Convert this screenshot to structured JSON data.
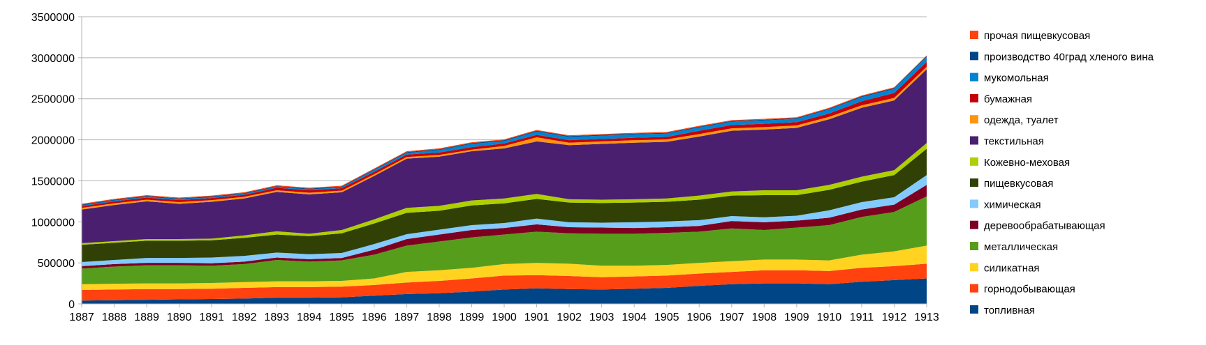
{
  "chart_data": {
    "type": "area",
    "stacked": true,
    "title": "",
    "xlabel": "",
    "ylabel": "",
    "ylim": [
      0,
      3500000
    ],
    "y_ticks": [
      0,
      500000,
      1000000,
      1500000,
      2000000,
      2500000,
      3000000,
      3500000
    ],
    "y_tick_labels": [
      "0",
      "500000",
      "1000000",
      "1500000",
      "2000000",
      "2500000",
      "3000000",
      "3500000"
    ],
    "grid": "horizontal",
    "legend_position": "right",
    "categories": [
      "1887",
      "1888",
      "1889",
      "1890",
      "1891",
      "1892",
      "1893",
      "1894",
      "1895",
      "1896",
      "1897",
      "1898",
      "1899",
      "1900",
      "1901",
      "1902",
      "1903",
      "1904",
      "1905",
      "1906",
      "1907",
      "1908",
      "1909",
      "1910",
      "1911",
      "1912",
      "1913"
    ],
    "series": [
      {
        "name": "топливная",
        "color": "#004586",
        "values": [
          40000,
          45000,
          50000,
          55000,
          60000,
          65000,
          75000,
          75000,
          80000,
          100000,
          120000,
          130000,
          150000,
          175000,
          190000,
          180000,
          175000,
          185000,
          195000,
          220000,
          240000,
          250000,
          250000,
          240000,
          270000,
          290000,
          310000
        ]
      },
      {
        "name": "горнодобывающая",
        "color": "#ff420e",
        "values": [
          130000,
          130000,
          130000,
          125000,
          125000,
          130000,
          130000,
          130000,
          130000,
          130000,
          140000,
          150000,
          160000,
          170000,
          160000,
          160000,
          150000,
          150000,
          150000,
          150000,
          150000,
          160000,
          160000,
          160000,
          170000,
          170000,
          180000
        ]
      },
      {
        "name": "силикатная",
        "color": "#ffd320",
        "values": [
          70000,
          70000,
          70000,
          70000,
          70000,
          70000,
          70000,
          70000,
          70000,
          80000,
          130000,
          130000,
          130000,
          140000,
          150000,
          150000,
          140000,
          130000,
          130000,
          130000,
          130000,
          130000,
          130000,
          130000,
          160000,
          180000,
          220000
        ]
      },
      {
        "name": "металлическая",
        "color": "#579d1c",
        "values": [
          190000,
          210000,
          220000,
          220000,
          210000,
          220000,
          260000,
          240000,
          250000,
          290000,
          320000,
          350000,
          370000,
          360000,
          380000,
          370000,
          390000,
          390000,
          390000,
          380000,
          400000,
          360000,
          390000,
          430000,
          460000,
          480000,
          600000
        ]
      },
      {
        "name": "деревообрабатывающая",
        "color": "#7e0021",
        "values": [
          30000,
          30000,
          30000,
          30000,
          30000,
          30000,
          30000,
          30000,
          30000,
          60000,
          80000,
          85000,
          90000,
          80000,
          90000,
          75000,
          75000,
          70000,
          70000,
          70000,
          90000,
          95000,
          85000,
          90000,
          90000,
          90000,
          140000
        ]
      },
      {
        "name": "химическая",
        "color": "#83caff",
        "values": [
          50000,
          50000,
          60000,
          60000,
          70000,
          70000,
          60000,
          60000,
          60000,
          70000,
          60000,
          60000,
          60000,
          60000,
          70000,
          60000,
          60000,
          70000,
          70000,
          70000,
          60000,
          60000,
          60000,
          90000,
          90000,
          90000,
          120000
        ]
      },
      {
        "name": "пищевкусовая",
        "color": "#314004",
        "values": [
          210000,
          210000,
          210000,
          210000,
          210000,
          220000,
          220000,
          220000,
          240000,
          250000,
          260000,
          230000,
          240000,
          240000,
          240000,
          240000,
          240000,
          240000,
          240000,
          250000,
          250000,
          270000,
          250000,
          250000,
          250000,
          270000,
          320000
        ]
      },
      {
        "name": "Кожевно-меховая",
        "color": "#aecf00",
        "values": [
          20000,
          20000,
          20000,
          20000,
          20000,
          30000,
          40000,
          30000,
          40000,
          50000,
          60000,
          60000,
          60000,
          60000,
          60000,
          40000,
          40000,
          40000,
          40000,
          50000,
          50000,
          60000,
          60000,
          60000,
          60000,
          60000,
          70000
        ]
      },
      {
        "name": "текстильная",
        "color": "#4b1f6f",
        "values": [
          410000,
          440000,
          460000,
          430000,
          450000,
          450000,
          480000,
          480000,
          460000,
          530000,
          600000,
          600000,
          600000,
          610000,
          640000,
          660000,
          680000,
          690000,
          690000,
          720000,
          740000,
          740000,
          760000,
          800000,
          840000,
          850000,
          900000
        ]
      },
      {
        "name": "одежда, туалет",
        "color": "#ff950e",
        "values": [
          20000,
          20000,
          20000,
          20000,
          20000,
          20000,
          20000,
          20000,
          20000,
          20000,
          20000,
          20000,
          20000,
          30000,
          50000,
          30000,
          30000,
          30000,
          30000,
          30000,
          30000,
          30000,
          30000,
          30000,
          30000,
          30000,
          30000
        ]
      },
      {
        "name": "бумажная",
        "color": "#c5000b",
        "values": [
          20000,
          25000,
          25000,
          25000,
          25000,
          25000,
          30000,
          30000,
          30000,
          30000,
          30000,
          30000,
          30000,
          30000,
          30000,
          30000,
          30000,
          30000,
          30000,
          40000,
          40000,
          40000,
          40000,
          40000,
          50000,
          60000,
          60000
        ]
      },
      {
        "name": "мукомольная",
        "color": "#0084d1",
        "values": [
          10000,
          10000,
          10000,
          10000,
          10000,
          10000,
          10000,
          10000,
          10000,
          20000,
          20000,
          30000,
          40000,
          30000,
          40000,
          40000,
          40000,
          40000,
          40000,
          40000,
          40000,
          40000,
          40000,
          50000,
          50000,
          50000,
          60000
        ]
      },
      {
        "name": "производство 40град хленого вина",
        "color": "#004586",
        "values": [
          10000,
          10000,
          10000,
          10000,
          10000,
          10000,
          10000,
          10000,
          10000,
          10000,
          10000,
          10000,
          10000,
          10000,
          10000,
          10000,
          10000,
          10000,
          10000,
          10000,
          10000,
          10000,
          10000,
          10000,
          10000,
          10000,
          10000
        ]
      },
      {
        "name": "прочая пищевкусовая",
        "color": "#ff420e",
        "values": [
          10000,
          10000,
          10000,
          10000,
          10000,
          10000,
          10000,
          10000,
          10000,
          10000,
          10000,
          10000,
          10000,
          10000,
          10000,
          10000,
          10000,
          10000,
          10000,
          10000,
          10000,
          10000,
          10000,
          10000,
          10000,
          10000,
          10000
        ]
      }
    ]
  }
}
